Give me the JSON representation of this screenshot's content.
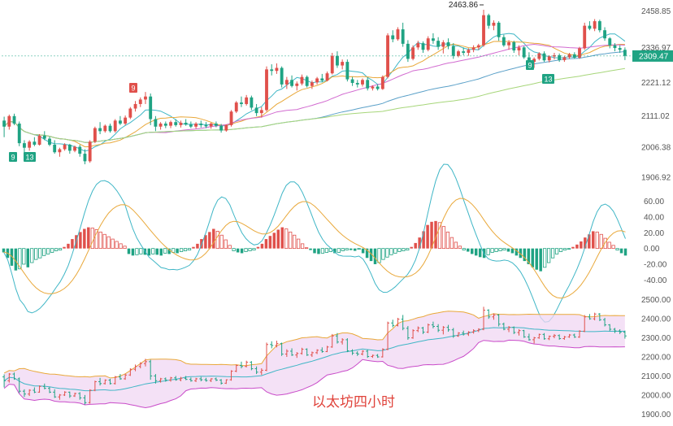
{
  "caption": "以太坊四小时",
  "chart_data": [
    {
      "panel": "price",
      "type": "candlestick",
      "y_ticks": [
        "2458.85",
        "2336.97",
        "2221.12",
        "2111.02",
        "2006.38",
        "1906.92"
      ],
      "y_tick_values": [
        2458.85,
        2336.97,
        2221.12,
        2111.02,
        2006.38,
        1906.92
      ],
      "ylim": [
        1880,
        2490
      ],
      "current_price": "2309.47",
      "high_label": "2463.86",
      "td_marks": [
        "9",
        "13",
        "9",
        "9",
        "13"
      ],
      "candles_ohlc": [
        [
          2095,
          2108,
          2040,
          2075
        ],
        [
          2075,
          2115,
          2065,
          2110
        ],
        [
          2110,
          2118,
          2080,
          2085
        ],
        [
          2085,
          2092,
          2010,
          2020
        ],
        [
          2020,
          2030,
          1990,
          2005
        ],
        [
          2005,
          2030,
          1995,
          2025
        ],
        [
          2025,
          2040,
          2010,
          2015
        ],
        [
          2015,
          2050,
          2012,
          2045
        ],
        [
          2045,
          2060,
          2030,
          2035
        ],
        [
          2035,
          2042,
          2010,
          2015
        ],
        [
          2015,
          2030,
          1985,
          1990
        ],
        [
          1990,
          2005,
          1975,
          2000
        ],
        [
          2000,
          2020,
          1995,
          2015
        ],
        [
          2015,
          2018,
          1985,
          1995
        ],
        [
          1995,
          2012,
          1990,
          2008
        ],
        [
          2008,
          2015,
          1975,
          1985
        ],
        [
          1985,
          2000,
          1950,
          1960
        ],
        [
          1960,
          2030,
          1955,
          2025
        ],
        [
          2025,
          2075,
          2020,
          2070
        ],
        [
          2070,
          2090,
          2050,
          2060
        ],
        [
          2060,
          2082,
          2055,
          2078
        ],
        [
          2078,
          2085,
          2055,
          2060
        ],
        [
          2060,
          2100,
          2055,
          2095
        ],
        [
          2095,
          2110,
          2080,
          2085
        ],
        [
          2085,
          2112,
          2080,
          2105
        ],
        [
          2105,
          2140,
          2100,
          2135
        ],
        [
          2135,
          2160,
          2125,
          2150
        ],
        [
          2150,
          2172,
          2140,
          2165
        ],
        [
          2165,
          2190,
          2150,
          2175
        ],
        [
          2175,
          2185,
          2080,
          2100
        ],
        [
          2100,
          2110,
          2060,
          2075
        ],
        [
          2075,
          2090,
          2065,
          2085
        ],
        [
          2085,
          2092,
          2070,
          2078
        ],
        [
          2078,
          2095,
          2070,
          2090
        ],
        [
          2090,
          2100,
          2075,
          2080
        ],
        [
          2080,
          2095,
          2072,
          2088
        ],
        [
          2088,
          2100,
          2078,
          2082
        ],
        [
          2082,
          2092,
          2070,
          2075
        ],
        [
          2075,
          2090,
          2068,
          2085
        ],
        [
          2085,
          2095,
          2072,
          2080
        ],
        [
          2080,
          2090,
          2070,
          2076
        ],
        [
          2076,
          2088,
          2068,
          2085
        ],
        [
          2085,
          2092,
          2073,
          2078
        ],
        [
          2078,
          2084,
          2055,
          2062
        ],
        [
          2062,
          2082,
          2058,
          2080
        ],
        [
          2080,
          2130,
          2075,
          2125
        ],
        [
          2125,
          2160,
          2120,
          2155
        ],
        [
          2155,
          2175,
          2140,
          2150
        ],
        [
          2150,
          2180,
          2145,
          2172
        ],
        [
          2172,
          2178,
          2130,
          2138
        ],
        [
          2138,
          2150,
          2110,
          2120
        ],
        [
          2120,
          2140,
          2105,
          2130
        ],
        [
          2130,
          2275,
          2125,
          2265
        ],
        [
          2265,
          2282,
          2245,
          2260
        ],
        [
          2260,
          2285,
          2250,
          2270
        ],
        [
          2270,
          2275,
          2205,
          2215
        ],
        [
          2215,
          2240,
          2200,
          2230
        ],
        [
          2230,
          2245,
          2205,
          2210
        ],
        [
          2210,
          2225,
          2195,
          2218
        ],
        [
          2218,
          2248,
          2212,
          2240
        ],
        [
          2240,
          2245,
          2205,
          2210
        ],
        [
          2210,
          2228,
          2200,
          2222
        ],
        [
          2222,
          2240,
          2215,
          2235
        ],
        [
          2235,
          2250,
          2222,
          2228
        ],
        [
          2228,
          2258,
          2225,
          2252
        ],
        [
          2252,
          2320,
          2248,
          2310
        ],
        [
          2310,
          2325,
          2270,
          2278
        ],
        [
          2278,
          2298,
          2265,
          2290
        ],
        [
          2290,
          2298,
          2225,
          2232
        ],
        [
          2232,
          2240,
          2210,
          2220
        ],
        [
          2220,
          2230,
          2205,
          2215
        ],
        [
          2215,
          2235,
          2208,
          2230
        ],
        [
          2230,
          2238,
          2195,
          2202
        ],
        [
          2202,
          2212,
          2195,
          2208
        ],
        [
          2208,
          2215,
          2195,
          2200
        ],
        [
          2200,
          2245,
          2197,
          2240
        ],
        [
          2240,
          2385,
          2235,
          2378
        ],
        [
          2378,
          2395,
          2355,
          2365
        ],
        [
          2365,
          2405,
          2360,
          2398
        ],
        [
          2398,
          2420,
          2340,
          2350
        ],
        [
          2350,
          2362,
          2290,
          2300
        ],
        [
          2300,
          2345,
          2295,
          2338
        ],
        [
          2338,
          2360,
          2330,
          2352
        ],
        [
          2352,
          2358,
          2320,
          2330
        ],
        [
          2330,
          2375,
          2325,
          2368
        ],
        [
          2368,
          2385,
          2350,
          2360
        ],
        [
          2360,
          2372,
          2330,
          2340
        ],
        [
          2340,
          2362,
          2318,
          2355
        ],
        [
          2355,
          2368,
          2332,
          2342
        ],
        [
          2342,
          2352,
          2300,
          2310
        ],
        [
          2310,
          2330,
          2305,
          2325
        ],
        [
          2325,
          2338,
          2312,
          2320
        ],
        [
          2320,
          2335,
          2310,
          2330
        ],
        [
          2330,
          2345,
          2322,
          2338
        ],
        [
          2338,
          2350,
          2330,
          2345
        ],
        [
          2345,
          2463,
          2340,
          2445
        ],
        [
          2445,
          2450,
          2400,
          2410
        ],
        [
          2410,
          2428,
          2395,
          2420
        ],
        [
          2420,
          2425,
          2360,
          2372
        ],
        [
          2372,
          2380,
          2340,
          2345
        ],
        [
          2345,
          2362,
          2330,
          2355
        ],
        [
          2355,
          2360,
          2320,
          2328
        ],
        [
          2328,
          2345,
          2312,
          2338
        ],
        [
          2338,
          2342,
          2300,
          2305
        ],
        [
          2305,
          2322,
          2285,
          2290
        ],
        [
          2290,
          2305,
          2270,
          2300
        ],
        [
          2300,
          2322,
          2295,
          2318
        ],
        [
          2318,
          2325,
          2290,
          2295
        ],
        [
          2295,
          2312,
          2288,
          2308
        ],
        [
          2308,
          2320,
          2298,
          2312
        ],
        [
          2312,
          2318,
          2290,
          2296
        ],
        [
          2296,
          2310,
          2290,
          2305
        ],
        [
          2305,
          2320,
          2300,
          2315
        ],
        [
          2315,
          2322,
          2300,
          2304
        ],
        [
          2304,
          2340,
          2300,
          2335
        ],
        [
          2335,
          2420,
          2330,
          2410
        ],
        [
          2410,
          2425,
          2395,
          2400
        ],
        [
          2400,
          2432,
          2392,
          2425
        ],
        [
          2425,
          2430,
          2388,
          2395
        ],
        [
          2395,
          2405,
          2360,
          2368
        ],
        [
          2368,
          2372,
          2335,
          2345
        ],
        [
          2345,
          2352,
          2325,
          2336
        ],
        [
          2336,
          2345,
          2320,
          2330
        ],
        [
          2330,
          2338,
          2296,
          2310
        ]
      ]
    },
    {
      "panel": "macd",
      "type": "bar+line",
      "y_ticks": [
        "60.00",
        "40.00",
        "20.00",
        "0.00",
        "-20.00",
        "-40.00"
      ],
      "y_tick_values": [
        60,
        40,
        20,
        0,
        -20,
        -40
      ],
      "ylim": [
        -48,
        68
      ],
      "hist_a": [
        -5,
        -12,
        -22,
        -28,
        -26,
        -20,
        -24,
        -18,
        -14,
        -12,
        -9,
        -7,
        -5,
        -3,
        -2,
        2,
        6,
        12,
        17,
        21,
        25,
        27,
        26,
        24,
        21,
        18,
        15,
        12,
        9,
        6,
        3
      ],
      "hist_b": [
        -7,
        -9,
        -8,
        -7,
        -8,
        -9,
        -7,
        -8,
        -9,
        -6,
        -7,
        -5,
        -6,
        -4,
        -3,
        -2,
        2,
        6,
        12,
        17,
        21,
        25,
        22,
        17,
        11,
        4,
        -3,
        -5,
        -6,
        -4,
        -3,
        -2,
        2,
        6,
        12,
        16,
        20,
        24,
        27,
        25,
        21,
        17,
        12,
        6,
        1,
        -2,
        -6,
        -7,
        -6,
        -5,
        -4,
        -6,
        -5,
        -3,
        -2,
        -2,
        -3,
        -1
      ],
      "hist_c": [
        -6,
        -12,
        -16,
        -20,
        -18,
        -14,
        -11,
        -8,
        -6,
        -4,
        -3,
        -2,
        2,
        7,
        14,
        22,
        30,
        34,
        35,
        33,
        28,
        21,
        14,
        8,
        3,
        -2,
        -4,
        -7,
        -9,
        -11,
        -12,
        -8,
        -5,
        -4,
        -3,
        -2,
        -4,
        -6,
        -9,
        -12,
        -16,
        -20,
        -24,
        -27,
        -29,
        -24,
        -18,
        -12,
        -7,
        -4,
        -2,
        -1,
        2,
        5,
        9,
        14,
        18,
        22,
        21,
        18,
        13,
        8,
        4,
        -2,
        -6,
        -9
      ]
    },
    {
      "panel": "bollinger",
      "type": "ohlc+bands",
      "y_ticks": [
        "2500.00",
        "2400.00",
        "2300.00",
        "2200.00",
        "2100.00",
        "2000.00",
        "1900.00"
      ],
      "y_tick_values": [
        2500,
        2400,
        2300,
        2200,
        2100,
        2000,
        1900
      ],
      "ylim": [
        1880,
        2520
      ]
    }
  ]
}
